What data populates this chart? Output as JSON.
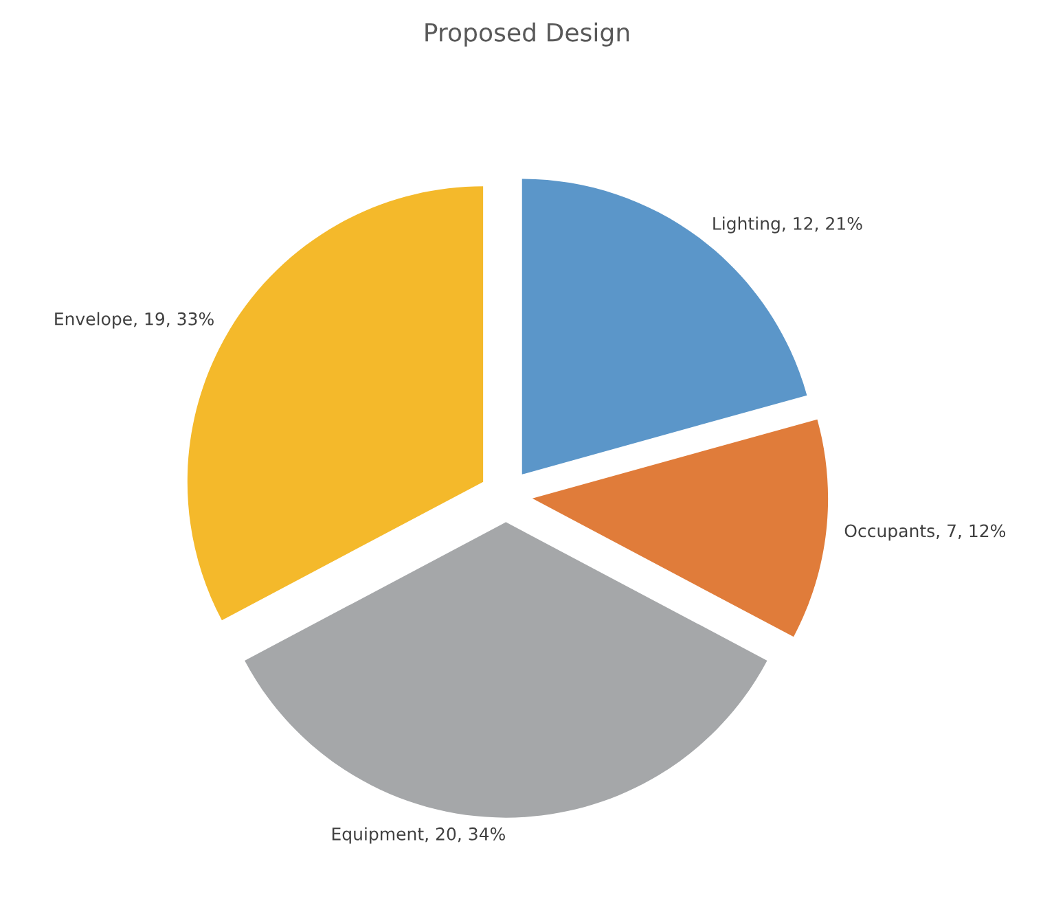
{
  "chart_data": {
    "type": "pie",
    "title": "Proposed Design",
    "categories": [
      "Lighting",
      "Occupants",
      "Equipment",
      "Envelope"
    ],
    "values": [
      12,
      7,
      20,
      19
    ],
    "value_labels": [
      "12, 21%",
      "7, 12%",
      "20, 34%",
      "19, 33%"
    ],
    "colors": [
      "#5b96c9",
      "#e07c3a",
      "#a5a7a9",
      "#f4b92b"
    ],
    "legend": false
  }
}
